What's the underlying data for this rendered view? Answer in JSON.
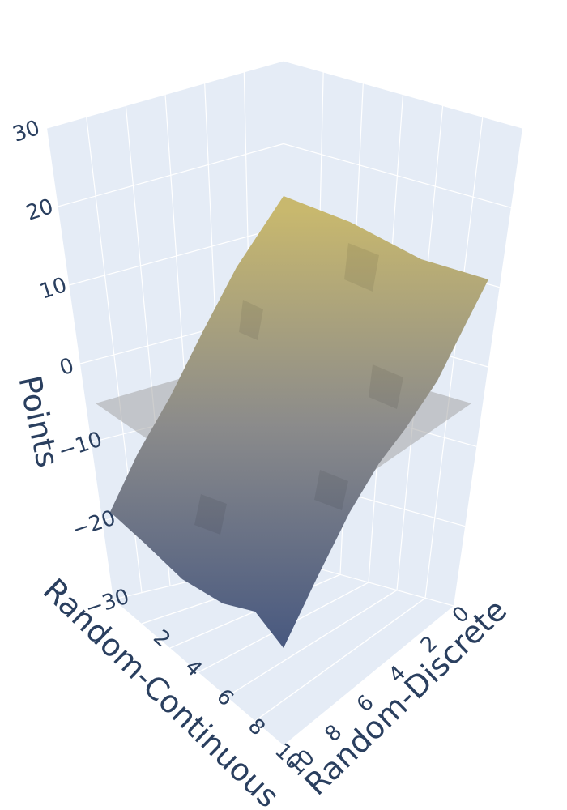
{
  "chart_data": {
    "type": "surface3d",
    "title": "",
    "x_axis": {
      "title": "Random-Continuous",
      "range": [
        0,
        10
      ],
      "ticks": [
        "0",
        "2",
        "4",
        "6",
        "8",
        "10"
      ]
    },
    "y_axis": {
      "title": "Random-Discrete",
      "range": [
        0,
        10
      ],
      "ticks": [
        "0",
        "2",
        "4",
        "6",
        "8",
        "10"
      ]
    },
    "z_axis": {
      "title": "Points",
      "range": [
        -30,
        30
      ],
      "ticks": [
        "−30",
        "−20",
        "−10",
        "0",
        "10",
        "20",
        "30"
      ]
    },
    "surface": {
      "x": [
        0,
        2,
        4,
        6,
        8,
        10
      ],
      "y": [
        0,
        2,
        4,
        6,
        8,
        10
      ],
      "z": [
        [
          24,
          17,
          10,
          3,
          -4,
          -12
        ],
        [
          24,
          17,
          10,
          3,
          -4,
          -11
        ],
        [
          24,
          17,
          10,
          3,
          -4,
          -11
        ],
        [
          23,
          16,
          9,
          2,
          -5,
          -12
        ],
        [
          23,
          16,
          9,
          2,
          -5,
          -12
        ],
        [
          24,
          17,
          9,
          2,
          -5,
          -12
        ]
      ],
      "colorscale_low": "#4a5a80",
      "colorscale_mid": "#8b8b8b",
      "colorscale_high": "#c8b86e"
    },
    "zero_plane": {
      "z": 0,
      "color": "#a6a6a6"
    },
    "background_color": "#e5ecf6",
    "grid": true,
    "legend": false
  }
}
